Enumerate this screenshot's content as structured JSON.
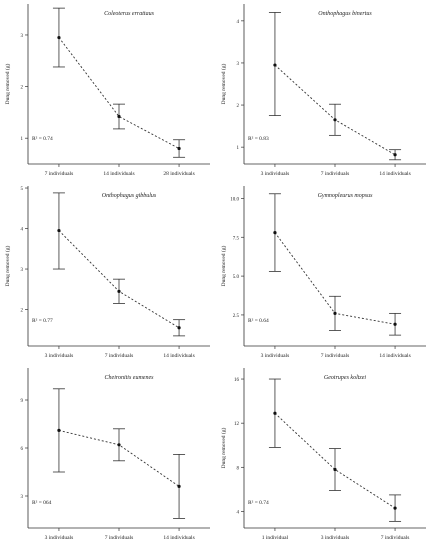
{
  "chart_data": [
    {
      "type": "line",
      "title": "Coleoterus errattaus",
      "ylabel": "Dung removed (g)",
      "categories": [
        "7 individuals",
        "14 individuals",
        "28 individuals"
      ],
      "series": [
        {
          "values": [
            2.95,
            1.42,
            0.8
          ],
          "err_low": [
            2.38,
            1.18,
            0.63
          ],
          "err_high": [
            3.52,
            1.66,
            0.97
          ]
        }
      ],
      "ylim": [
        0.5,
        3.6
      ],
      "yticks": [
        1,
        2,
        3
      ],
      "r2": "R² = 0.74"
    },
    {
      "type": "line",
      "title": "Onthophagus binertus",
      "ylabel": "Dung removed (g)",
      "categories": [
        "3 individuals",
        "7 individuals",
        "14 individuals"
      ],
      "series": [
        {
          "values": [
            2.95,
            1.65,
            0.82
          ],
          "err_low": [
            1.75,
            1.28,
            0.7
          ],
          "err_high": [
            4.2,
            2.02,
            0.94
          ]
        }
      ],
      "ylim": [
        0.6,
        4.4
      ],
      "yticks": [
        1,
        2,
        3,
        4
      ],
      "r2": "R² = 0.83"
    },
    {
      "type": "line",
      "title": "Onthophagus gibbulus",
      "ylabel": "Dung removed (g)",
      "categories": [
        "3 individuals",
        "7 individuals",
        "14 individuals"
      ],
      "series": [
        {
          "values": [
            3.95,
            2.45,
            1.55
          ],
          "err_low": [
            3.0,
            2.15,
            1.35
          ],
          "err_high": [
            4.88,
            2.75,
            1.75
          ]
        }
      ],
      "ylim": [
        1.1,
        5.05
      ],
      "yticks": [
        2,
        3,
        4,
        5
      ],
      "r2": "R² = 0.77"
    },
    {
      "type": "line",
      "title": "Gymnopleurus mopsus",
      "ylabel": "Dung removed (g)",
      "categories": [
        "3 individuals",
        "7 individuals",
        "14 individuals"
      ],
      "series": [
        {
          "values": [
            7.8,
            2.6,
            1.9
          ],
          "err_low": [
            5.3,
            1.5,
            1.2
          ],
          "err_high": [
            10.3,
            3.7,
            2.6
          ]
        }
      ],
      "ylim": [
        0.5,
        10.8
      ],
      "yticks": [
        "2.5",
        "5.0",
        "7.5",
        "10.0"
      ],
      "r2": "R² = 0.64"
    },
    {
      "type": "line",
      "title": "Cheironitis eumenes",
      "ylabel": "",
      "categories": [
        "3 individuals",
        "7 individuals",
        "14 individuals"
      ],
      "series": [
        {
          "values": [
            7.1,
            6.2,
            3.6
          ],
          "err_low": [
            4.5,
            5.2,
            1.6
          ],
          "err_high": [
            9.7,
            7.2,
            5.6
          ]
        }
      ],
      "ylim": [
        1.0,
        11.0
      ],
      "yticks": [
        3,
        6,
        9
      ],
      "r2": "R² = 064"
    },
    {
      "type": "line",
      "title": "Geotrupes koltzei",
      "ylabel": "Dung removed (g)",
      "categories": [
        "1 individual",
        "3 individuals",
        "7 individuals"
      ],
      "series": [
        {
          "values": [
            12.9,
            7.8,
            4.3
          ],
          "err_low": [
            9.8,
            5.9,
            3.1
          ],
          "err_high": [
            16.0,
            9.7,
            5.5
          ]
        }
      ],
      "ylim": [
        2.5,
        17.0
      ],
      "yticks": [
        4,
        8,
        12,
        16
      ],
      "r2": "R² = 0.74"
    }
  ]
}
